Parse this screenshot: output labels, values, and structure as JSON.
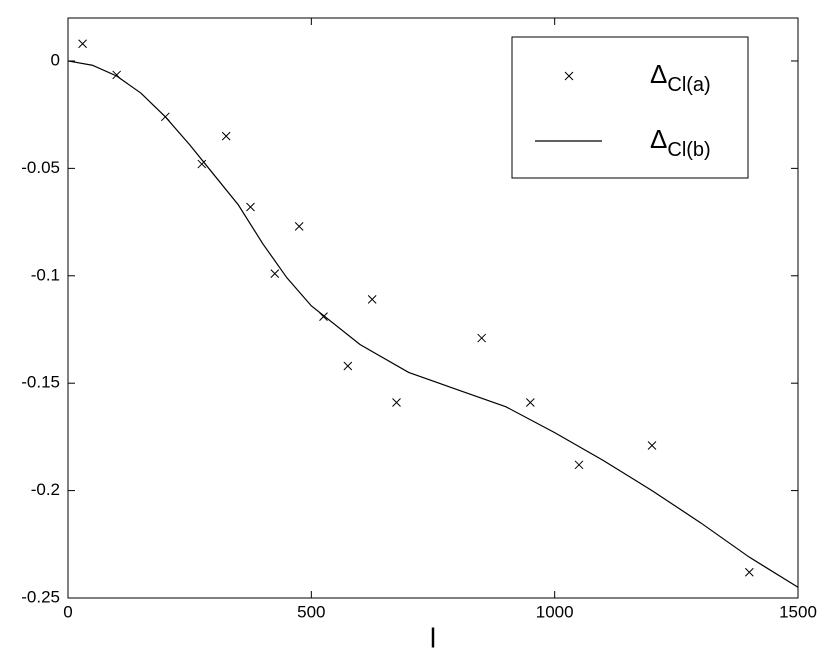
{
  "chart_data": {
    "type": "line",
    "xlabel": "l",
    "xlim": [
      0,
      1500
    ],
    "xticks": [
      0,
      500,
      1000,
      1500
    ],
    "ylim": [
      -0.25,
      0.02
    ],
    "yticks": [
      0,
      -0.05,
      -0.1,
      -0.15,
      -0.2,
      -0.25
    ],
    "legend": "upper right",
    "series": [
      {
        "name": "ΔCl(a)",
        "type": "scatter",
        "color": "#000000",
        "x": [
          30,
          100,
          200,
          275,
          325,
          375,
          425,
          475,
          525,
          575,
          625,
          675,
          850,
          950,
          1050,
          1200,
          1400
        ],
        "values": [
          0.008,
          -0.0065,
          -0.026,
          -0.048,
          -0.035,
          -0.068,
          -0.099,
          -0.077,
          -0.119,
          -0.142,
          -0.111,
          -0.159,
          -0.129,
          -0.159,
          -0.188,
          -0.179,
          -0.238
        ]
      },
      {
        "name": "ΔCl(b)",
        "type": "line",
        "color": "#000000",
        "x": [
          0,
          50,
          100,
          150,
          200,
          250,
          300,
          350,
          400,
          450,
          500,
          600,
          700,
          800,
          900,
          1000,
          1100,
          1200,
          1300,
          1400,
          1500
        ],
        "values": [
          0,
          -0.002,
          -0.007,
          -0.015,
          -0.026,
          -0.039,
          -0.053,
          -0.067,
          -0.085,
          -0.101,
          -0.114,
          -0.132,
          -0.145,
          -0.153,
          -0.161,
          -0.173,
          -0.186,
          -0.2,
          -0.215,
          -0.231,
          -0.245
        ]
      }
    ]
  }
}
